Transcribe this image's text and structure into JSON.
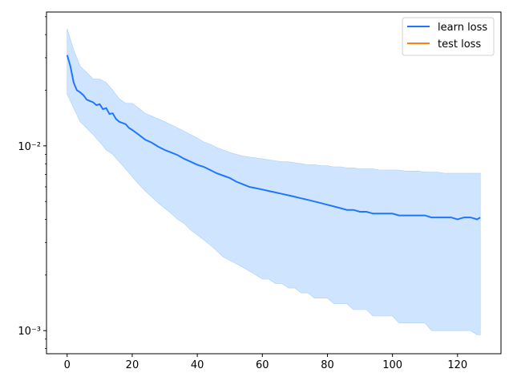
{
  "chart_data": {
    "type": "line",
    "yscale": "log",
    "xlim": [
      -6.35,
      133.35
    ],
    "ylim": [
      0.00075,
      0.053
    ],
    "x_ticks": [
      0,
      20,
      40,
      60,
      80,
      100,
      120
    ],
    "y_ticks": [
      0.001,
      0.01
    ],
    "y_tick_labels": [
      "10⁻³",
      "10⁻²"
    ],
    "legend": {
      "position": "top-right",
      "entries": [
        "learn loss",
        "test loss"
      ]
    },
    "colors": {
      "learn": "#1f77ff",
      "test": "#ff7f0e",
      "band": "#cce4ff"
    },
    "series": [
      {
        "name": "learn loss",
        "x": [
          0,
          1,
          2,
          3,
          4,
          5,
          6,
          7,
          8,
          9,
          10,
          11,
          12,
          13,
          14,
          15,
          16,
          17,
          18,
          19,
          20,
          22,
          24,
          26,
          28,
          30,
          32,
          34,
          36,
          38,
          40,
          42,
          44,
          46,
          48,
          50,
          52,
          54,
          56,
          58,
          60,
          62,
          64,
          66,
          68,
          70,
          72,
          74,
          76,
          78,
          80,
          82,
          84,
          86,
          88,
          90,
          92,
          94,
          96,
          98,
          100,
          102,
          104,
          106,
          108,
          110,
          112,
          114,
          116,
          118,
          120,
          122,
          124,
          126,
          127
        ],
        "values": [
          0.031,
          0.027,
          0.022,
          0.02,
          0.0195,
          0.0188,
          0.0178,
          0.0175,
          0.0172,
          0.0166,
          0.0168,
          0.0158,
          0.016,
          0.0149,
          0.015,
          0.014,
          0.0135,
          0.0133,
          0.0131,
          0.0125,
          0.0122,
          0.0115,
          0.0108,
          0.0104,
          0.0099,
          0.0095,
          0.0092,
          0.0089,
          0.0085,
          0.0082,
          0.0079,
          0.0077,
          0.0074,
          0.0071,
          0.0069,
          0.0067,
          0.0064,
          0.0062,
          0.006,
          0.0059,
          0.0058,
          0.0057,
          0.0056,
          0.0055,
          0.0054,
          0.0053,
          0.0052,
          0.0051,
          0.005,
          0.0049,
          0.0048,
          0.0047,
          0.0046,
          0.0045,
          0.0045,
          0.0044,
          0.0044,
          0.0043,
          0.0043,
          0.0043,
          0.0043,
          0.0042,
          0.0042,
          0.0042,
          0.0042,
          0.0042,
          0.0041,
          0.0041,
          0.0041,
          0.0041,
          0.004,
          0.0041,
          0.0041,
          0.004,
          0.0041
        ]
      },
      {
        "name": "test loss",
        "x": [],
        "values": []
      }
    ],
    "band": {
      "x": [
        0,
        2,
        4,
        6,
        8,
        10,
        12,
        14,
        16,
        18,
        20,
        22,
        24,
        26,
        28,
        30,
        32,
        34,
        36,
        38,
        40,
        42,
        44,
        46,
        48,
        50,
        52,
        54,
        56,
        58,
        60,
        62,
        64,
        66,
        68,
        70,
        72,
        74,
        76,
        78,
        80,
        82,
        84,
        86,
        88,
        90,
        92,
        94,
        96,
        98,
        100,
        102,
        104,
        106,
        108,
        110,
        112,
        114,
        116,
        118,
        120,
        122,
        124,
        126,
        127
      ],
      "upper": [
        0.043,
        0.033,
        0.027,
        0.025,
        0.023,
        0.023,
        0.022,
        0.02,
        0.018,
        0.017,
        0.017,
        0.016,
        0.015,
        0.0145,
        0.014,
        0.0135,
        0.013,
        0.0125,
        0.012,
        0.0115,
        0.011,
        0.0105,
        0.0102,
        0.0098,
        0.0095,
        0.0092,
        0.009,
        0.0088,
        0.0087,
        0.0086,
        0.0085,
        0.0084,
        0.0083,
        0.0082,
        0.0082,
        0.0081,
        0.008,
        0.0079,
        0.0079,
        0.0078,
        0.0078,
        0.0077,
        0.0077,
        0.0076,
        0.0076,
        0.0075,
        0.0075,
        0.0075,
        0.0074,
        0.0074,
        0.0074,
        0.0074,
        0.0073,
        0.0073,
        0.0073,
        0.0072,
        0.0072,
        0.0072,
        0.0071,
        0.0071,
        0.0071,
        0.0071,
        0.0071,
        0.0071,
        0.0071
      ],
      "lower": [
        0.019,
        0.016,
        0.0135,
        0.0125,
        0.0115,
        0.0105,
        0.0095,
        0.009,
        0.0082,
        0.0075,
        0.0068,
        0.0062,
        0.0057,
        0.0053,
        0.0049,
        0.0046,
        0.0043,
        0.004,
        0.0038,
        0.0035,
        0.0033,
        0.0031,
        0.0029,
        0.0027,
        0.0025,
        0.0024,
        0.0023,
        0.0022,
        0.0021,
        0.002,
        0.0019,
        0.0019,
        0.0018,
        0.0018,
        0.0017,
        0.0017,
        0.0016,
        0.0016,
        0.0015,
        0.0015,
        0.0015,
        0.0014,
        0.0014,
        0.0014,
        0.0013,
        0.0013,
        0.0013,
        0.0012,
        0.0012,
        0.0012,
        0.0012,
        0.0011,
        0.0011,
        0.0011,
        0.0011,
        0.0011,
        0.001,
        0.001,
        0.001,
        0.001,
        0.001,
        0.001,
        0.001,
        0.00095,
        0.00095
      ]
    }
  }
}
